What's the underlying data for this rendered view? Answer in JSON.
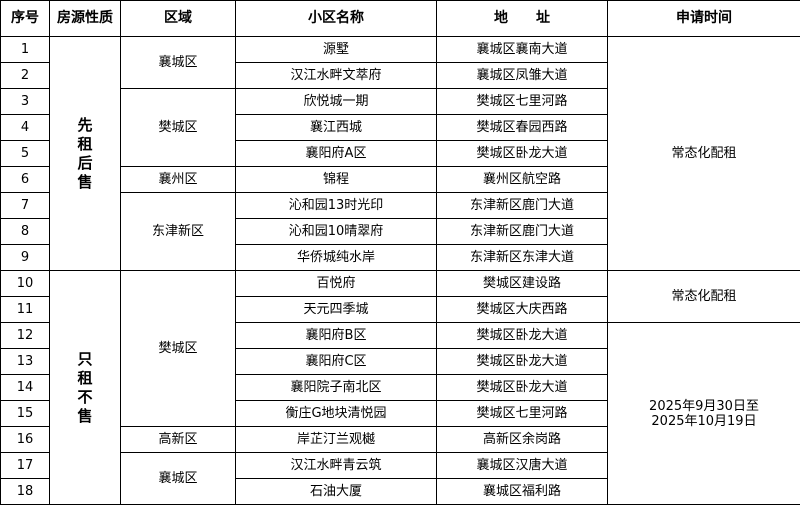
{
  "headers": [
    "序号",
    "房源性质",
    "区域",
    "小区名称",
    "地　　址",
    "申请时间"
  ],
  "rows": [
    {
      "no": "1",
      "name": "源墅",
      "address": "襄城区襄南大道"
    },
    {
      "no": "2",
      "name": "汉江水畔文萃府",
      "address": "襄城区凤雏大道"
    },
    {
      "no": "3",
      "name": "欣悦城一期",
      "address": "樊城区七里河路"
    },
    {
      "no": "4",
      "name": "襄江西城",
      "address": "樊城区春园西路"
    },
    {
      "no": "5",
      "name": "襄阳府A区",
      "address": "樊城区卧龙大道"
    },
    {
      "no": "6",
      "name": "锦程",
      "address": "襄州区航空路"
    },
    {
      "no": "7",
      "name": "沁和园13时光印",
      "address": "东津新区鹿门大道"
    },
    {
      "no": "8",
      "name": "沁和园10晴翠府",
      "address": "东津新区鹿门大道"
    },
    {
      "no": "9",
      "name": "华侨城纯水岸",
      "address": "东津新区东津大道"
    },
    {
      "no": "10",
      "name": "百悦府",
      "address": "樊城区建设路"
    },
    {
      "no": "11",
      "name": "天元四季城",
      "address": "樊城区大庆西路"
    },
    {
      "no": "12",
      "name": "襄阳府B区",
      "address": "樊城区卧龙大道"
    },
    {
      "no": "13",
      "name": "襄阳府C区",
      "address": "樊城区卧龙大道"
    },
    {
      "no": "14",
      "name": "襄阳院子南北区",
      "address": "樊城区卧龙大道"
    },
    {
      "no": "15",
      "name": "衡庄G地块清悦园",
      "address": "樊城区七里河路"
    },
    {
      "no": "16",
      "name": "岸芷汀兰观樾",
      "address": "高新区余岗路"
    },
    {
      "no": "17",
      "name": "汉江水畔青云筑",
      "address": "襄城区汉唐大道"
    },
    {
      "no": "18",
      "name": "石油大厦",
      "address": "襄城区福利路"
    }
  ],
  "type_groups": [
    {
      "label": "先租后售",
      "count": 9
    },
    {
      "label": "只租不售",
      "count": 9
    }
  ],
  "district_groups": [
    {
      "label": "襄城区",
      "count": 2
    },
    {
      "label": "樊城区",
      "count": 3
    },
    {
      "label": "襄州区",
      "count": 1
    },
    {
      "label": "东津新区",
      "count": 3
    },
    {
      "label": "樊城区",
      "count": 6
    },
    {
      "label": "高新区",
      "count": 1
    },
    {
      "label": "襄城区",
      "count": 2
    }
  ],
  "time_groups": [
    {
      "label": "常态化配租",
      "count": 9
    },
    {
      "label": "常态化配租",
      "count": 2
    },
    {
      "label": "2025年9月30日至\n2025年10月19日",
      "count": 7
    }
  ]
}
